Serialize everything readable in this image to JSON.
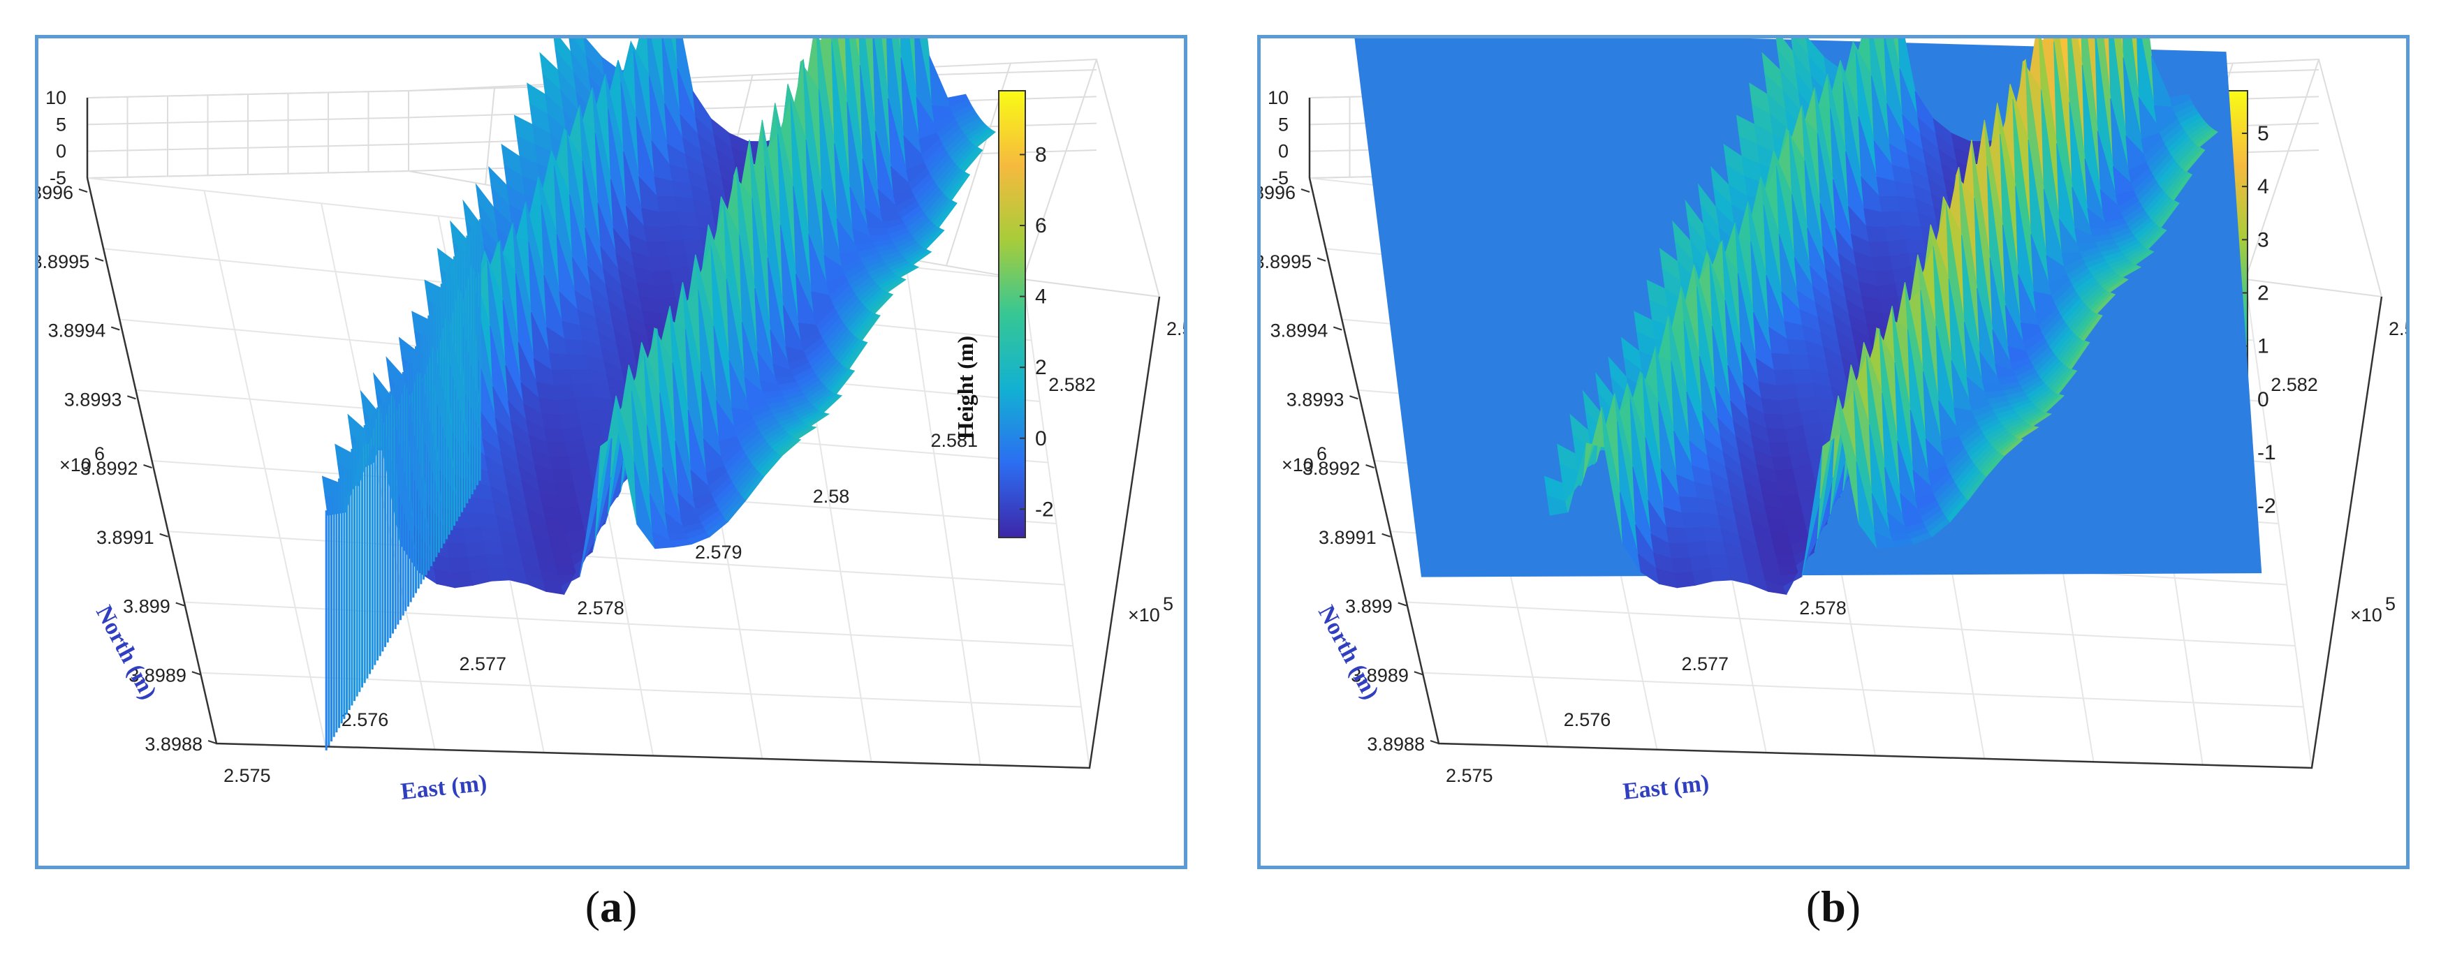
{
  "chart_data": [
    {
      "type": "surface",
      "panel_label": "a",
      "xlabel": "East (m)",
      "ylabel": "North (m)",
      "zlabel": "",
      "colorbar_label": "Height (m)",
      "x_ticks": [
        "2.575",
        "2.576",
        "2.577",
        "2.578",
        "2.579",
        "2.58",
        "2.581",
        "2.582",
        "2.583"
      ],
      "x_exponent": "×10",
      "x_exponent_power": "5",
      "y_ticks": [
        "3.8988",
        "3.8989",
        "3.899",
        "3.8991",
        "3.8992",
        "3.8993",
        "3.8994",
        "3.8995",
        "3.8996"
      ],
      "y_exponent": "×10",
      "y_exponent_power": "6",
      "z_ticks": [
        "-5",
        "0",
        "5",
        "10"
      ],
      "zlim": [
        -5,
        10
      ],
      "colorbar_ticks": [
        "8",
        "6",
        "4",
        "2",
        "0",
        "-2"
      ],
      "colorbar_range": [
        -2.8,
        9.8
      ],
      "colormap": [
        "#3e26a8",
        "#2c6ef2",
        "#12b1d2",
        "#36c794",
        "#a8cc3a",
        "#f6ba3e",
        "#f9fb15"
      ],
      "grid": true
    },
    {
      "type": "surface",
      "panel_label": "b",
      "xlabel": "East (m)",
      "ylabel": "North (m)",
      "zlabel": "",
      "colorbar_label": "Height (m)",
      "x_ticks": [
        "2.575",
        "2.576",
        "2.577",
        "2.578",
        "2.579",
        "2.58",
        "2.581",
        "2.582",
        "2.583"
      ],
      "x_exponent": "×10",
      "x_exponent_power": "5",
      "y_ticks": [
        "3.8988",
        "3.8989",
        "3.899",
        "3.8991",
        "3.8992",
        "3.8993",
        "3.8994",
        "3.8995",
        "3.8996"
      ],
      "y_exponent": "×10",
      "y_exponent_power": "6",
      "z_ticks": [
        "-5",
        "0",
        "5",
        "10"
      ],
      "zlim": [
        -5,
        10
      ],
      "colorbar_ticks": [
        "5",
        "4",
        "3",
        "2",
        "1",
        "0",
        "-1",
        "-2"
      ],
      "colorbar_range": [
        -2.6,
        5.8
      ],
      "colormap": [
        "#3e26a8",
        "#2c6ef2",
        "#12b1d2",
        "#36c794",
        "#a8cc3a",
        "#f6ba3e",
        "#f9fb15"
      ],
      "grid": true
    }
  ],
  "captions": {
    "a": "a",
    "b": "b"
  }
}
